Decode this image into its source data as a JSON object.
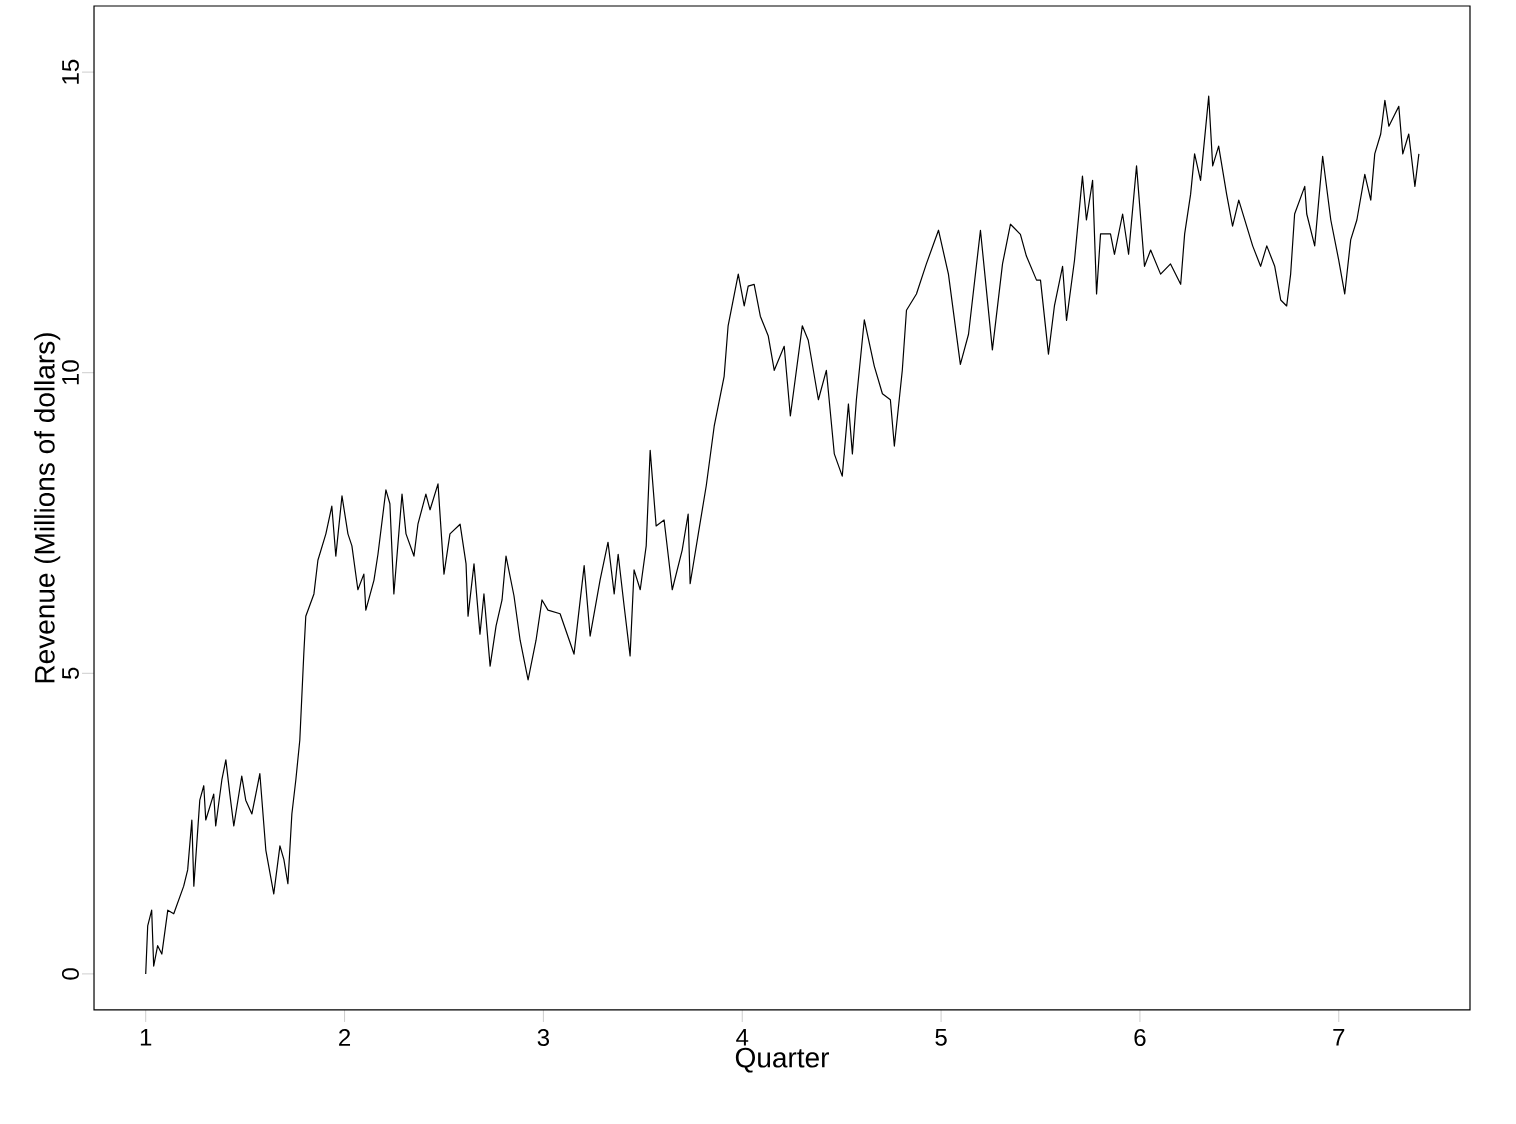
{
  "chart_data": {
    "type": "line",
    "xlabel": "Quarter",
    "ylabel": "Revenue (Millions of dollars)",
    "color": "#000000",
    "xlim": [
      0.74,
      7.66
    ],
    "ylim": [
      -0.6,
      16.1
    ],
    "xticks": [
      1,
      2,
      3,
      4,
      5,
      6,
      7
    ],
    "yticks": [
      0,
      5,
      10,
      15
    ],
    "x": [
      1.0,
      1.01,
      1.03,
      1.04,
      1.06,
      1.081,
      1.111,
      1.141,
      1.191,
      1.211,
      1.232,
      1.242,
      1.272,
      1.292,
      1.302,
      1.342,
      1.352,
      1.383,
      1.403,
      1.423,
      1.443,
      1.483,
      1.503,
      1.534,
      1.574,
      1.604,
      1.644,
      1.675,
      1.695,
      1.715,
      1.735,
      1.755,
      1.775,
      1.795,
      1.805,
      1.846,
      1.866,
      1.906,
      1.936,
      1.956,
      1.987,
      2.017,
      2.037,
      2.067,
      2.097,
      2.107,
      2.148,
      2.168,
      2.208,
      2.228,
      2.248,
      2.289,
      2.309,
      2.349,
      2.369,
      2.409,
      2.43,
      2.47,
      2.5,
      2.53,
      2.581,
      2.611,
      2.621,
      2.651,
      2.681,
      2.701,
      2.732,
      2.762,
      2.792,
      2.812,
      2.852,
      2.883,
      2.923,
      2.963,
      2.993,
      3.023,
      3.084,
      3.154,
      3.205,
      3.235,
      3.285,
      3.325,
      3.356,
      3.376,
      3.406,
      3.436,
      3.456,
      3.487,
      3.517,
      3.537,
      3.567,
      3.607,
      3.648,
      3.698,
      3.728,
      3.738,
      3.779,
      3.819,
      3.859,
      3.909,
      3.929,
      3.98,
      4.01,
      4.03,
      4.06,
      4.091,
      4.131,
      4.161,
      4.211,
      4.242,
      4.302,
      4.332,
      4.383,
      4.423,
      4.463,
      4.503,
      4.534,
      4.554,
      4.574,
      4.614,
      4.664,
      4.705,
      4.745,
      4.765,
      4.805,
      4.826,
      4.876,
      4.926,
      4.987,
      5.037,
      5.097,
      5.138,
      5.198,
      5.258,
      5.309,
      5.349,
      5.399,
      5.429,
      5.48,
      5.5,
      5.54,
      5.57,
      5.611,
      5.631,
      5.671,
      5.711,
      5.731,
      5.762,
      5.782,
      5.802,
      5.852,
      5.872,
      5.913,
      5.943,
      5.983,
      6.023,
      6.054,
      6.104,
      6.154,
      6.205,
      6.225,
      6.255,
      6.275,
      6.305,
      6.346,
      6.366,
      6.396,
      6.436,
      6.466,
      6.497,
      6.567,
      6.607,
      6.638,
      6.678,
      6.708,
      6.738,
      6.758,
      6.778,
      6.829,
      6.839,
      6.879,
      6.919,
      6.96,
      7.0,
      7.03,
      7.06,
      7.091,
      7.131,
      7.161,
      7.181,
      7.211,
      7.232,
      7.252,
      7.282,
      7.302,
      7.322,
      7.352,
      7.383,
      7.403
    ],
    "values": [
      0.0,
      0.8,
      1.06,
      0.13,
      0.47,
      0.33,
      1.06,
      1.0,
      1.46,
      1.73,
      2.56,
      1.46,
      2.89,
      3.13,
      2.56,
      2.99,
      2.46,
      3.23,
      3.56,
      2.99,
      2.46,
      3.29,
      2.89,
      2.66,
      3.33,
      2.06,
      1.33,
      2.13,
      1.9,
      1.5,
      2.66,
      3.23,
      3.89,
      5.32,
      5.95,
      6.32,
      6.88,
      7.32,
      7.78,
      6.95,
      7.95,
      7.32,
      7.12,
      6.39,
      6.65,
      6.05,
      6.55,
      6.98,
      8.05,
      7.82,
      6.32,
      7.98,
      7.32,
      6.95,
      7.48,
      7.98,
      7.72,
      8.15,
      6.65,
      7.32,
      7.48,
      6.82,
      5.95,
      6.82,
      5.65,
      6.32,
      5.12,
      5.79,
      6.22,
      6.95,
      6.29,
      5.55,
      4.89,
      5.55,
      6.22,
      6.05,
      5.99,
      5.32,
      6.79,
      5.62,
      6.55,
      7.18,
      6.32,
      6.98,
      6.12,
      5.29,
      6.72,
      6.39,
      7.12,
      8.71,
      7.45,
      7.55,
      6.39,
      7.05,
      7.65,
      6.49,
      7.32,
      8.12,
      9.11,
      9.94,
      10.78,
      11.64,
      11.11,
      11.44,
      11.47,
      10.94,
      10.61,
      10.04,
      10.44,
      9.28,
      10.78,
      10.54,
      9.55,
      10.04,
      8.65,
      8.28,
      9.48,
      8.65,
      9.55,
      10.88,
      10.11,
      9.65,
      9.55,
      8.78,
      10.04,
      11.04,
      11.31,
      11.81,
      12.37,
      11.64,
      10.14,
      10.64,
      12.37,
      10.38,
      11.81,
      12.47,
      12.3,
      11.94,
      11.54,
      11.54,
      10.31,
      11.11,
      11.77,
      10.87,
      11.87,
      13.27,
      12.54,
      13.2,
      11.31,
      12.31,
      12.31,
      11.97,
      12.64,
      11.97,
      13.44,
      11.77,
      12.04,
      11.64,
      11.81,
      11.47,
      12.31,
      12.97,
      13.64,
      13.2,
      14.6,
      13.44,
      13.77,
      12.97,
      12.44,
      12.87,
      12.11,
      11.77,
      12.11,
      11.77,
      11.21,
      11.11,
      11.64,
      12.64,
      13.1,
      12.64,
      12.11,
      13.6,
      12.54,
      11.87,
      11.31,
      12.21,
      12.54,
      13.3,
      12.87,
      13.64,
      13.97,
      14.53,
      14.1,
      14.3,
      14.43,
      13.64,
      13.97,
      13.1,
      13.64
    ]
  }
}
